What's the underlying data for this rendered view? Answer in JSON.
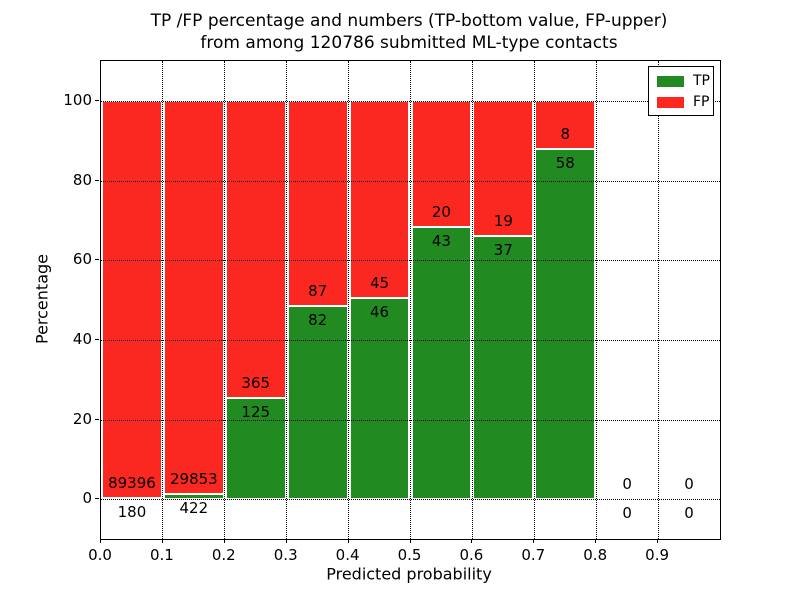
{
  "title": {
    "line1": "TP /FP percentage and numbers (TP-bottom value, FP-upper)",
    "line2": "from among 120786 submitted ML-type contacts"
  },
  "chart_data": {
    "type": "bar",
    "stacked": true,
    "normalized_to_percent": true,
    "title": "TP /FP percentage and numbers (TP-bottom value, FP-upper) from among 120786 submitted ML-type contacts",
    "xlabel": "Predicted probability",
    "ylabel": "Percentage",
    "bin_edges": [
      0.0,
      0.1,
      0.2,
      0.3,
      0.4,
      0.5,
      0.6,
      0.7,
      0.8,
      0.9,
      1.0
    ],
    "categories": [
      "0.0-0.1",
      "0.1-0.2",
      "0.2-0.3",
      "0.3-0.4",
      "0.4-0.5",
      "0.5-0.6",
      "0.6-0.7",
      "0.7-0.8",
      "0.8-0.9",
      "0.9-1.0"
    ],
    "series": [
      {
        "name": "TP",
        "color": "#218a21",
        "counts": [
          180,
          422,
          125,
          82,
          46,
          43,
          37,
          58,
          0,
          0
        ],
        "percent_of_bin": [
          0.2,
          1.4,
          25.5,
          48.5,
          50.5,
          68.3,
          66.1,
          87.9,
          0,
          0
        ]
      },
      {
        "name": "FP",
        "color": "#fa2820",
        "counts": [
          89396,
          29853,
          365,
          87,
          45,
          20,
          19,
          8,
          0,
          0
        ],
        "percent_of_bin": [
          99.8,
          98.6,
          74.5,
          51.5,
          49.5,
          31.7,
          33.9,
          12.1,
          0,
          0
        ]
      }
    ],
    "annotation_rule": "FP count printed just above the TP/FP boundary, TP count just below it",
    "total_submitted": 120786,
    "x_ticks": [
      "0.0",
      "0.1",
      "0.2",
      "0.3",
      "0.4",
      "0.5",
      "0.6",
      "0.7",
      "0.8",
      "0.9"
    ],
    "y_ticks": [
      "0",
      "20",
      "40",
      "60",
      "80",
      "100"
    ],
    "y_tick_values": [
      0,
      20,
      40,
      60,
      80,
      100
    ],
    "xlim": [
      0.0,
      1.0
    ],
    "ylim": [
      -10,
      110
    ],
    "grid": true,
    "grid_style": "dotted",
    "legend": {
      "position": "upper right",
      "entries": [
        {
          "label": "TP",
          "color": "#218a21"
        },
        {
          "label": "FP",
          "color": "#fa2820"
        }
      ]
    }
  }
}
